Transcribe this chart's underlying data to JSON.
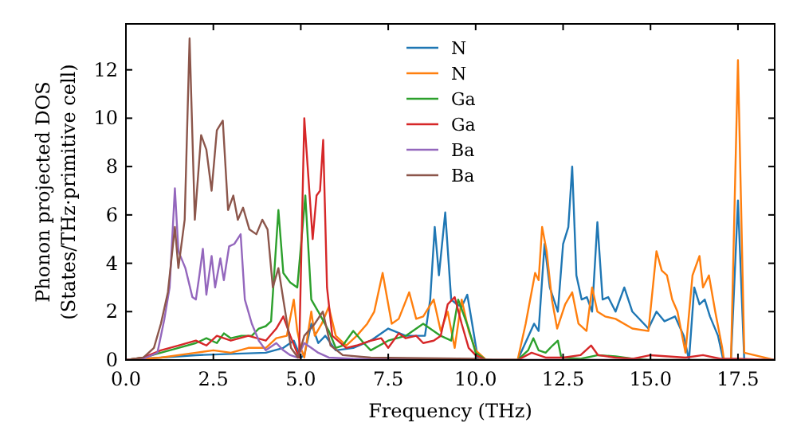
{
  "chart_data": {
    "type": "line",
    "xlabel": "Frequency (THz)",
    "ylabel": "Phonon projected DOS\n(States/THz·primitive cell)",
    "xlim": [
      0,
      18.55
    ],
    "ylim": [
      0,
      13.9
    ],
    "xticks": [
      {
        "value": 0,
        "label": "0.0"
      },
      {
        "value": 2.5,
        "label": "2.5"
      },
      {
        "value": 5,
        "label": "5.0"
      },
      {
        "value": 7.5,
        "label": "7.5"
      },
      {
        "value": 10,
        "label": "10.0"
      },
      {
        "value": 12.5,
        "label": "12.5"
      },
      {
        "value": 15,
        "label": "15.0"
      },
      {
        "value": 17.5,
        "label": "17.5"
      }
    ],
    "yticks": [
      0,
      2,
      4,
      6,
      8,
      10,
      12
    ],
    "legend": "top",
    "grid": false,
    "marker": "none",
    "line_style": "solid",
    "series": [
      {
        "name": "N",
        "color": "#1f77b4",
        "x": [
          0,
          1,
          2,
          3,
          4,
          4.5,
          4.8,
          5.0,
          5.1,
          5.3,
          5.5,
          5.7,
          6.0,
          6.5,
          7.0,
          7.5,
          8.0,
          8.3,
          8.55,
          8.7,
          8.83,
          8.95,
          9.13,
          9.3,
          9.46,
          9.6,
          9.76,
          9.9,
          10.07,
          11.2,
          11.67,
          11.8,
          11.97,
          12.12,
          12.35,
          12.5,
          12.65,
          12.76,
          12.88,
          13.03,
          13.18,
          13.33,
          13.48,
          13.63,
          13.79,
          14.0,
          14.25,
          14.48,
          14.94,
          15.17,
          15.4,
          15.7,
          15.95,
          16.1,
          16.25,
          16.4,
          16.55,
          16.7,
          16.93,
          17.08,
          17.3,
          17.5,
          17.68,
          18.55
        ],
        "values": [
          0,
          0.1,
          0.2,
          0.25,
          0.3,
          0.5,
          0.8,
          0.1,
          0.2,
          1.5,
          0.7,
          1.0,
          0.4,
          0.5,
          0.8,
          1.3,
          1.0,
          1.0,
          1.0,
          2.5,
          5.5,
          3.5,
          6.1,
          2.5,
          2.3,
          2.2,
          2.7,
          1.5,
          0,
          0,
          1.5,
          1.2,
          4.8,
          3.0,
          2.0,
          4.8,
          5.5,
          8.0,
          3.5,
          2.5,
          2.6,
          2.0,
          5.7,
          2.5,
          2.6,
          2.0,
          3.0,
          2.0,
          1.3,
          2.0,
          1.6,
          1.8,
          1.0,
          0,
          3.0,
          2.3,
          2.5,
          1.8,
          1.0,
          0,
          0,
          6.6,
          0,
          0
        ]
      },
      {
        "name": "N",
        "color": "#ff7f0e",
        "x": [
          0,
          1,
          2,
          2.5,
          3,
          3.5,
          4,
          4.3,
          4.6,
          4.8,
          4.9,
          5.0,
          5.1,
          5.3,
          5.4,
          5.6,
          5.8,
          6.0,
          6.3,
          6.6,
          6.9,
          7.1,
          7.34,
          7.6,
          7.8,
          8.1,
          8.3,
          8.5,
          8.8,
          9.0,
          9.2,
          9.4,
          9.6,
          9.8,
          10.0,
          10.3,
          11.2,
          11.43,
          11.7,
          11.8,
          11.9,
          12.03,
          12.18,
          12.33,
          12.56,
          12.76,
          12.94,
          13.17,
          13.33,
          13.48,
          13.7,
          14.0,
          14.48,
          14.94,
          15.17,
          15.32,
          15.47,
          15.62,
          15.77,
          16.0,
          16.2,
          16.4,
          16.5,
          16.67,
          16.85,
          17.05,
          17.1,
          17.3,
          17.5,
          17.68,
          18.55
        ],
        "values": [
          0,
          0.1,
          0.3,
          0.4,
          0.3,
          0.5,
          0.5,
          0.9,
          1.0,
          2.5,
          1.2,
          0.5,
          0.1,
          2.0,
          1.0,
          1.5,
          2.2,
          1.0,
          0.6,
          1.0,
          1.5,
          2.0,
          3.6,
          1.5,
          1.7,
          2.8,
          1.7,
          1.8,
          2.5,
          1.2,
          2.0,
          0.5,
          2.5,
          1.2,
          0.4,
          0,
          0,
          1.5,
          3.6,
          3.3,
          5.5,
          4.5,
          2.5,
          1.3,
          2.3,
          2.8,
          1.5,
          1.2,
          3.0,
          2.0,
          1.8,
          1.7,
          1.3,
          1.2,
          4.5,
          3.7,
          3.5,
          2.5,
          2.0,
          0.3,
          3.5,
          4.3,
          3.0,
          3.5,
          2.0,
          0.5,
          0,
          0,
          12.4,
          0.3,
          0
        ]
      },
      {
        "name": "Ga",
        "color": "#2ca02c",
        "x": [
          0,
          0.5,
          1.0,
          1.5,
          2,
          2.3,
          2.6,
          2.8,
          3.0,
          3.3,
          3.6,
          3.8,
          4.0,
          4.15,
          4.36,
          4.5,
          4.7,
          4.9,
          5.13,
          5.3,
          5.5,
          5.8,
          6.0,
          6.2,
          6.5,
          6.8,
          7.0,
          7.5,
          8.0,
          8.5,
          9.0,
          9.3,
          9.5,
          9.8,
          10.0,
          10.3,
          11.2,
          11.5,
          11.65,
          11.8,
          12.0,
          12.2,
          12.35,
          12.45,
          13.0,
          13.5,
          14.0,
          14.5,
          15.0,
          18.55
        ],
        "values": [
          0,
          0.1,
          0.3,
          0.5,
          0.7,
          0.9,
          0.7,
          1.1,
          0.9,
          1.0,
          1.0,
          1.3,
          1.4,
          1.6,
          6.2,
          3.6,
          3.2,
          3.0,
          6.8,
          2.5,
          2.0,
          1.2,
          0.5,
          0.6,
          1.2,
          0.7,
          0.4,
          0.8,
          1.0,
          1.5,
          1.0,
          0.8,
          2.5,
          1.3,
          0.3,
          0,
          0,
          0.4,
          0.9,
          0.4,
          0.3,
          0.6,
          0.8,
          0.1,
          0.05,
          0.2,
          0.15,
          0.05,
          0,
          0
        ]
      },
      {
        "name": "Ga",
        "color": "#d62728",
        "x": [
          0,
          0.5,
          1,
          1.5,
          2,
          2.3,
          2.6,
          3,
          3.5,
          4.0,
          4.3,
          4.5,
          4.7,
          4.95,
          5.1,
          5.34,
          5.45,
          5.55,
          5.64,
          5.75,
          5.9,
          6.3,
          6.6,
          7.0,
          7.3,
          7.5,
          7.8,
          8.0,
          8.3,
          8.5,
          8.8,
          9.0,
          9.2,
          9.4,
          9.6,
          9.8,
          10.0,
          10.3,
          11.2,
          11.6,
          12.0,
          12.5,
          13.0,
          13.3,
          13.5,
          14,
          14.5,
          15,
          15.5,
          16,
          16.5,
          17,
          17.5,
          18.55
        ],
        "values": [
          0,
          0.1,
          0.4,
          0.6,
          0.8,
          0.6,
          1.0,
          0.8,
          1.0,
          0.8,
          1.3,
          1.8,
          1.0,
          0.1,
          10.0,
          5.0,
          6.8,
          7.0,
          9.1,
          3.0,
          1.0,
          0.5,
          0.6,
          0.8,
          0.9,
          0.5,
          1.1,
          0.9,
          1.0,
          0.7,
          0.8,
          1.0,
          2.3,
          2.6,
          1.5,
          0.5,
          0.2,
          0,
          0,
          0.3,
          0.1,
          0.1,
          0.2,
          0.6,
          0.2,
          0.1,
          0.05,
          0.2,
          0.15,
          0.1,
          0.2,
          0.05,
          0.05,
          0
        ]
      },
      {
        "name": "Ba",
        "color": "#9467bd",
        "x": [
          0,
          0.5,
          0.9,
          1.1,
          1.25,
          1.4,
          1.5,
          1.7,
          1.9,
          2.0,
          2.1,
          2.2,
          2.3,
          2.45,
          2.55,
          2.7,
          2.8,
          2.95,
          3.1,
          3.28,
          3.4,
          3.6,
          3.8,
          4.0,
          4.3,
          4.5,
          4.7,
          4.9,
          5.1,
          5.3,
          5.5,
          5.8,
          6.5,
          10,
          18.55
        ],
        "values": [
          0,
          0.05,
          0.3,
          1.7,
          3.0,
          7.1,
          4.5,
          3.8,
          2.6,
          2.5,
          3.5,
          4.6,
          2.7,
          4.3,
          3.0,
          4.2,
          3.3,
          4.7,
          4.8,
          5.2,
          2.5,
          1.5,
          0.8,
          0.4,
          0.7,
          0.4,
          0.2,
          0.1,
          0.7,
          0.5,
          0.3,
          0.1,
          0.05,
          0,
          0
        ]
      },
      {
        "name": "Ba",
        "color": "#8c564b",
        "x": [
          0,
          0.5,
          0.8,
          1.0,
          1.2,
          1.4,
          1.5,
          1.68,
          1.82,
          1.97,
          2.15,
          2.3,
          2.45,
          2.6,
          2.77,
          2.92,
          3.07,
          3.2,
          3.35,
          3.53,
          3.73,
          3.9,
          4.05,
          4.2,
          4.36,
          4.5,
          4.72,
          4.92,
          5.1,
          5.4,
          5.63,
          5.85,
          6.2,
          7,
          10,
          10.5,
          18.55
        ],
        "values": [
          0,
          0.1,
          0.5,
          1.5,
          2.8,
          5.5,
          3.8,
          5.8,
          13.3,
          5.8,
          9.3,
          8.7,
          7.0,
          9.5,
          9.9,
          6.2,
          6.8,
          5.8,
          6.3,
          5.4,
          5.2,
          5.8,
          5.4,
          3.0,
          3.8,
          2.5,
          0.5,
          0.1,
          1.0,
          1.5,
          2.0,
          0.6,
          0.2,
          0.1,
          0.05,
          0,
          0
        ]
      }
    ]
  }
}
